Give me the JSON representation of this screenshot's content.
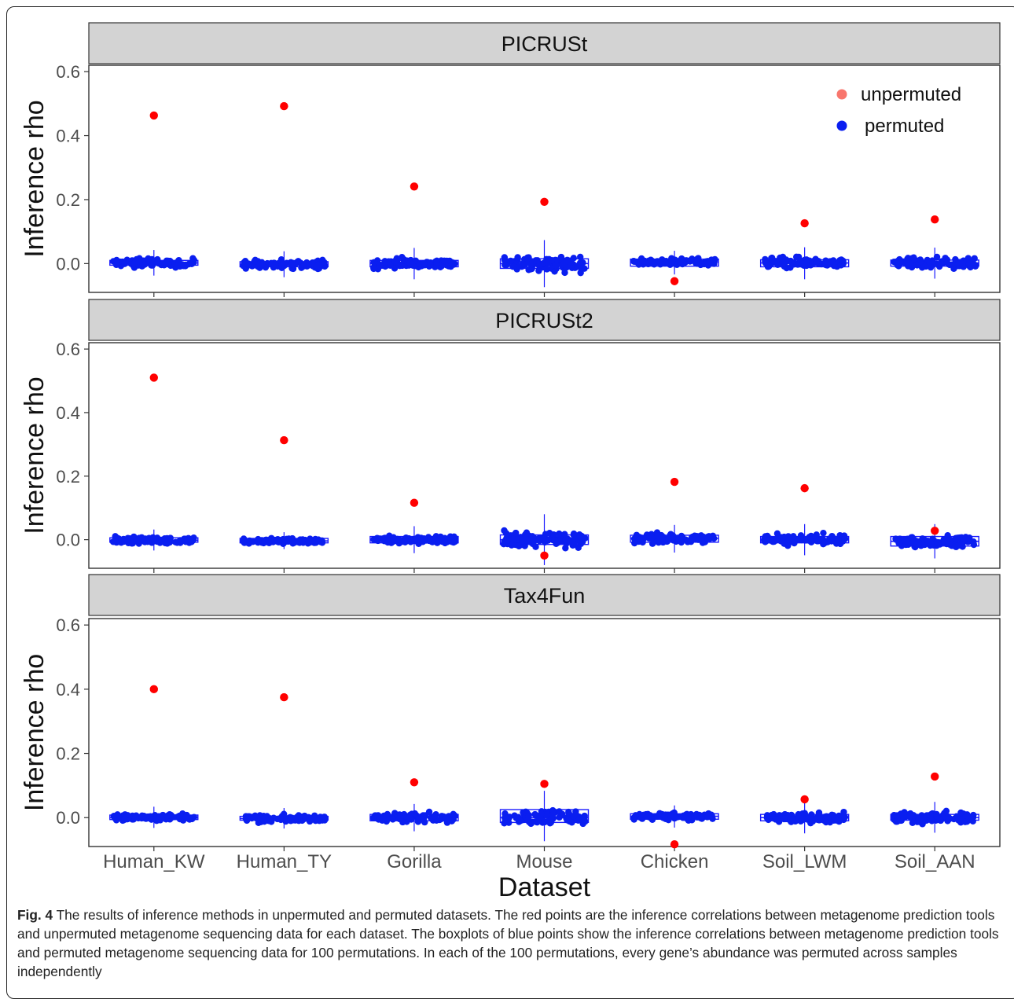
{
  "figure": {
    "caption_label": "Fig. 4",
    "caption_text": " The results of inference methods in unpermuted and permuted datasets. The red points are the inference correlations between metagenome prediction tools and unpermuted metagenome sequencing data for each dataset. The boxplots of blue points show the inference correlations between metagenome prediction tools and permuted metagenome sequencing data for 100 permutations. In each of the 100 permutations, every gene’s abundance was permuted across samples independently"
  },
  "colors": {
    "unpermuted": "#ff0000",
    "unpermuted_legend": "#f8766d",
    "permuted": "#0a1ef0",
    "box": "#1a1aff",
    "strip": "#d3d3d3",
    "axis": "#333333"
  },
  "chart_data": {
    "type": "scatter",
    "subtype": "faceted boxplot with jittered points",
    "xlabel": "Dataset",
    "ylabel": "Inference rho",
    "ylim": [
      -0.09,
      0.62
    ],
    "yticks": [
      0.0,
      0.2,
      0.4,
      0.6
    ],
    "ytick_labels": [
      "0.0",
      "0.2",
      "0.4",
      "0.6"
    ],
    "categories": [
      "Human_KW",
      "Human_TY",
      "Gorilla",
      "Mouse",
      "Chicken",
      "Soil_LWM",
      "Soil_AAN"
    ],
    "grid": false,
    "legend": {
      "placement": "top-right",
      "panel": "PICRUSt",
      "entries": [
        {
          "label": "unpermuted",
          "color_key": "unpermuted_legend"
        },
        {
          "label": "permuted",
          "color_key": "permuted"
        }
      ]
    },
    "panels": [
      {
        "title": "PICRUSt",
        "unpermuted": [
          0.463,
          0.492,
          0.241,
          0.193,
          -0.055,
          0.126,
          0.138
        ],
        "permuted_spread": [
          0.025,
          0.025,
          0.03,
          0.045,
          0.02,
          0.03,
          0.03
        ],
        "boxes": [
          {
            "q1": -0.005,
            "median": 0.002,
            "q3": 0.01
          },
          {
            "q1": -0.01,
            "median": -0.002,
            "q3": 0.006
          },
          {
            "q1": -0.01,
            "median": 0.0,
            "q3": 0.01
          },
          {
            "q1": -0.015,
            "median": 0.0,
            "q3": 0.015
          },
          {
            "q1": -0.008,
            "median": 0.005,
            "q3": 0.014
          },
          {
            "q1": -0.01,
            "median": 0.002,
            "q3": 0.012
          },
          {
            "q1": -0.008,
            "median": 0.002,
            "q3": 0.011
          }
        ]
      },
      {
        "title": "PICRUSt2",
        "unpermuted": [
          0.51,
          0.313,
          0.116,
          -0.05,
          0.182,
          0.162,
          0.028
        ],
        "permuted_spread": [
          0.02,
          0.015,
          0.025,
          0.05,
          0.025,
          0.03,
          0.03
        ],
        "boxes": [
          {
            "q1": -0.008,
            "median": -0.002,
            "q3": 0.006
          },
          {
            "q1": -0.01,
            "median": -0.004,
            "q3": 0.004
          },
          {
            "q1": -0.01,
            "median": 0.0,
            "q3": 0.01
          },
          {
            "q1": -0.015,
            "median": 0.0,
            "q3": 0.015
          },
          {
            "q1": -0.008,
            "median": 0.004,
            "q3": 0.014
          },
          {
            "q1": -0.01,
            "median": 0.0,
            "q3": 0.01
          },
          {
            "q1": -0.02,
            "median": -0.005,
            "q3": 0.01
          }
        ]
      },
      {
        "title": "Tax4Fun",
        "unpermuted": [
          0.4,
          0.375,
          0.11,
          0.105,
          -0.083,
          0.057,
          0.128
        ],
        "permuted_spread": [
          0.02,
          0.02,
          0.025,
          0.045,
          0.02,
          0.03,
          0.03
        ],
        "boxes": [
          {
            "q1": -0.006,
            "median": 0.0,
            "q3": 0.008
          },
          {
            "q1": -0.008,
            "median": -0.003,
            "q3": 0.004
          },
          {
            "q1": -0.01,
            "median": 0.0,
            "q3": 0.01
          },
          {
            "q1": -0.015,
            "median": 0.0,
            "q3": 0.025
          },
          {
            "q1": -0.005,
            "median": 0.004,
            "q3": 0.012
          },
          {
            "q1": -0.01,
            "median": 0.0,
            "q3": 0.01
          },
          {
            "q1": -0.008,
            "median": 0.0,
            "q3": 0.01
          }
        ]
      }
    ]
  }
}
